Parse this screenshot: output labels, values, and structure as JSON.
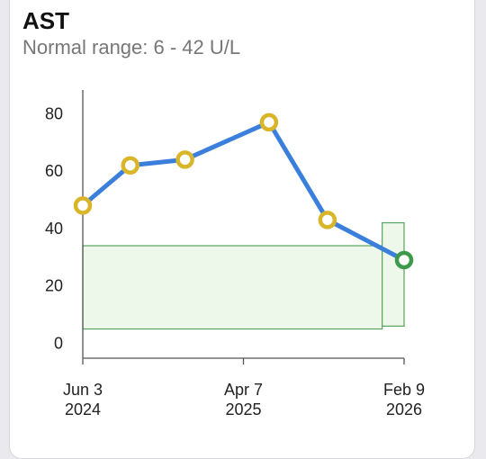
{
  "header": {
    "title": "AST",
    "subtitle": "Normal range: 6 - 42 U/L"
  },
  "chart_data": {
    "type": "line",
    "title": "AST",
    "subtitle": "Normal range: 6 - 42 U/L",
    "ylim": [
      0,
      85
    ],
    "y_ticks": [
      0,
      20,
      40,
      60,
      80
    ],
    "x_ticks": [
      {
        "date": "2024-06-03",
        "line1": "Jun 3",
        "line2": "2024"
      },
      {
        "date": "2025-04-07",
        "line1": "Apr 7",
        "line2": "2025"
      },
      {
        "date": "2026-02-09",
        "line1": "Feb 9",
        "line2": "2026"
      }
    ],
    "xlim": [
      "2024-06-03",
      "2026-02-09"
    ],
    "series": [
      {
        "color": "#3a7fdc",
        "points": [
          {
            "date": "2024-06-03",
            "value": 48,
            "status": "out-of-range"
          },
          {
            "date": "2024-09-02",
            "value": 62,
            "status": "out-of-range"
          },
          {
            "date": "2024-12-16",
            "value": 64,
            "status": "out-of-range"
          },
          {
            "date": "2025-05-26",
            "value": 77,
            "status": "out-of-range"
          },
          {
            "date": "2025-09-15",
            "value": 43,
            "status": "out-of-range"
          },
          {
            "date": "2026-02-09",
            "value": 29,
            "status": "in-range"
          }
        ]
      }
    ],
    "reference_range": [
      {
        "from": "2024-06-03",
        "to": "2025-12-29",
        "low": 5,
        "high": 34
      },
      {
        "from": "2025-12-29",
        "to": "2026-02-09",
        "low": 6,
        "high": 42
      }
    ],
    "colors": {
      "line": "#3a7fdc",
      "marker_out_of_range": "#d9b52a",
      "marker_in_range": "#3d9a4a",
      "range_fill": "#edf8ea",
      "range_stroke": "#5aa25e",
      "axis": "#555555"
    },
    "grid": false,
    "legend": "none"
  }
}
